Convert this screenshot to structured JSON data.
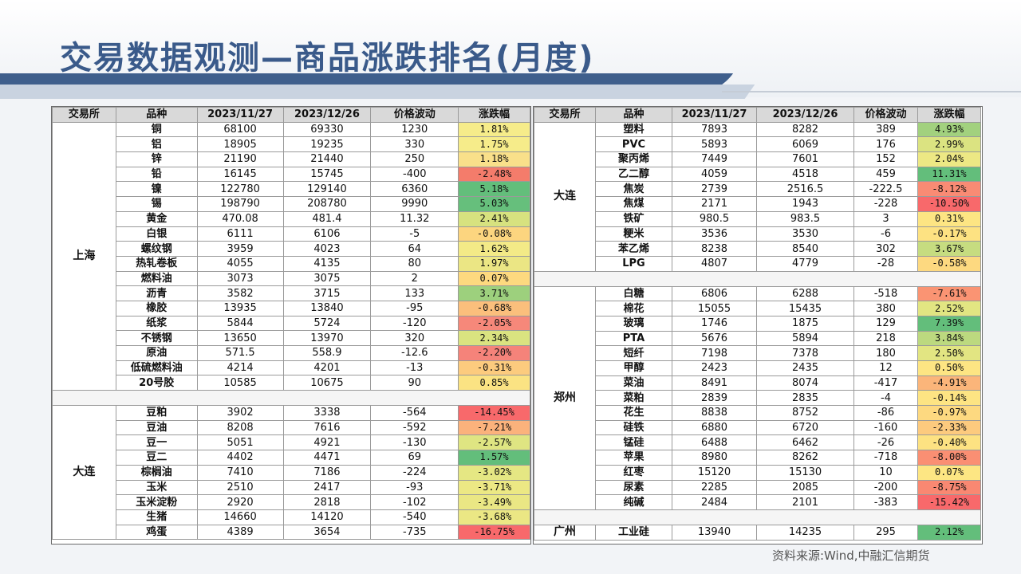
{
  "title": "交易数据观测—商品涨跌排名(月度)",
  "source": "资料来源:Wind,中融汇信期货",
  "headers": [
    "交易所",
    "品种",
    "2023/11/27",
    "2023/12/26",
    "价格波动",
    "涨跌幅"
  ],
  "left_groups": [
    {
      "exchange": "上海",
      "rows": [
        {
          "name": "铜",
          "p1": "68100",
          "p2": "69330",
          "chg": "1230",
          "pct": "1.81%",
          "color": "#f6ec8a"
        },
        {
          "name": "铝",
          "p1": "18905",
          "p2": "19235",
          "chg": "330",
          "pct": "1.75%",
          "color": "#f6ec8a"
        },
        {
          "name": "锌",
          "p1": "21190",
          "p2": "21440",
          "chg": "250",
          "pct": "1.18%",
          "color": "#f9e08a"
        },
        {
          "name": "铅",
          "p1": "16145",
          "p2": "15745",
          "chg": "-400",
          "pct": "-2.48%",
          "color": "#f47c6b"
        },
        {
          "name": "镍",
          "p1": "122780",
          "p2": "129140",
          "chg": "6360",
          "pct": "5.18%",
          "color": "#63be7b"
        },
        {
          "name": "锡",
          "p1": "198790",
          "p2": "208780",
          "chg": "9990",
          "pct": "5.03%",
          "color": "#66bf7c"
        },
        {
          "name": "黄金",
          "p1": "470.08",
          "p2": "481.4",
          "chg": "11.32",
          "pct": "2.41%",
          "color": "#d7e27f"
        },
        {
          "name": "白银",
          "p1": "6111",
          "p2": "6106",
          "chg": "-5",
          "pct": "-0.08%",
          "color": "#fcd57f"
        },
        {
          "name": "螺纹钢",
          "p1": "3959",
          "p2": "4023",
          "chg": "64",
          "pct": "1.62%",
          "color": "#f3ea87"
        },
        {
          "name": "热轧卷板",
          "p1": "4055",
          "p2": "4135",
          "chg": "80",
          "pct": "1.97%",
          "color": "#ebe684"
        },
        {
          "name": "燃料油",
          "p1": "3073",
          "p2": "3075",
          "chg": "2",
          "pct": "0.07%",
          "color": "#fdd97f"
        },
        {
          "name": "沥青",
          "p1": "3582",
          "p2": "3715",
          "chg": "133",
          "pct": "3.71%",
          "color": "#9dd07d"
        },
        {
          "name": "橡胶",
          "p1": "13935",
          "p2": "13840",
          "chg": "-95",
          "pct": "-0.68%",
          "color": "#fbbf7c"
        },
        {
          "name": "纸浆",
          "p1": "5844",
          "p2": "5724",
          "chg": "-120",
          "pct": "-2.05%",
          "color": "#f6887a"
        },
        {
          "name": "不锈钢",
          "p1": "13650",
          "p2": "13970",
          "chg": "320",
          "pct": "2.34%",
          "color": "#dae380"
        },
        {
          "name": "原油",
          "p1": "571.5",
          "p2": "558.9",
          "chg": "-12.6",
          "pct": "-2.20%",
          "color": "#f5837a"
        },
        {
          "name": "低硫燃料油",
          "p1": "4214",
          "p2": "4201",
          "chg": "-13",
          "pct": "-0.31%",
          "color": "#fccb7e"
        },
        {
          "name": "20号胶",
          "p1": "10585",
          "p2": "10675",
          "chg": "90",
          "pct": "0.85%",
          "color": "#fbe383"
        }
      ]
    },
    {
      "exchange": "大连",
      "rows": [
        {
          "name": "豆粕",
          "p1": "3902",
          "p2": "3338",
          "chg": "-564",
          "pct": "-14.45%",
          "color": "#f8696b"
        },
        {
          "name": "豆油",
          "p1": "8208",
          "p2": "7616",
          "chg": "-592",
          "pct": "-7.21%",
          "color": "#fbb27c"
        },
        {
          "name": "豆一",
          "p1": "5051",
          "p2": "4921",
          "chg": "-130",
          "pct": "-2.57%",
          "color": "#dfe582"
        },
        {
          "name": "豆二",
          "p1": "4402",
          "p2": "4471",
          "chg": "69",
          "pct": "1.57%",
          "color": "#63be7b"
        },
        {
          "name": "棕榈油",
          "p1": "7410",
          "p2": "7186",
          "chg": "-224",
          "pct": "-3.02%",
          "color": "#e5e783"
        },
        {
          "name": "玉米",
          "p1": "2510",
          "p2": "2417",
          "chg": "-93",
          "pct": "-3.71%",
          "color": "#ece884"
        },
        {
          "name": "玉米淀粉",
          "p1": "2920",
          "p2": "2818",
          "chg": "-102",
          "pct": "-3.49%",
          "color": "#eae784"
        },
        {
          "name": "生猪",
          "p1": "14660",
          "p2": "14120",
          "chg": "-540",
          "pct": "-3.68%",
          "color": "#ebe784"
        },
        {
          "name": "鸡蛋",
          "p1": "4389",
          "p2": "3654",
          "chg": "-735",
          "pct": "-16.75%",
          "color": "#f8696b"
        }
      ]
    }
  ],
  "right_groups": [
    {
      "exchange": "大连",
      "rows": [
        {
          "name": "塑料",
          "p1": "7893",
          "p2": "8282",
          "chg": "389",
          "pct": "4.93%",
          "color": "#a2d17e"
        },
        {
          "name": "PVC",
          "p1": "5893",
          "p2": "6069",
          "chg": "176",
          "pct": "2.99%",
          "color": "#dbe381"
        },
        {
          "name": "聚丙烯",
          "p1": "7449",
          "p2": "7601",
          "chg": "152",
          "pct": "2.04%",
          "color": "#ede884"
        },
        {
          "name": "乙二醇",
          "p1": "4059",
          "p2": "4518",
          "chg": "459",
          "pct": "11.31%",
          "color": "#63be7b"
        },
        {
          "name": "焦炭",
          "p1": "2739",
          "p2": "2516.5",
          "chg": "-222.5",
          "pct": "-8.12%",
          "color": "#f98b74"
        },
        {
          "name": "焦煤",
          "p1": "2171",
          "p2": "1943",
          "chg": "-228",
          "pct": "-10.50%",
          "color": "#f8696b"
        },
        {
          "name": "铁矿",
          "p1": "980.5",
          "p2": "983.5",
          "chg": "3",
          "pct": "0.31%",
          "color": "#fde583"
        },
        {
          "name": "粳米",
          "p1": "3536",
          "p2": "3530",
          "chg": "-6",
          "pct": "-0.17%",
          "color": "#fde282"
        },
        {
          "name": "苯乙烯",
          "p1": "8238",
          "p2": "8540",
          "chg": "302",
          "pct": "3.67%",
          "color": "#c6dc80"
        },
        {
          "name": "LPG",
          "p1": "4807",
          "p2": "4779",
          "chg": "-28",
          "pct": "-0.58%",
          "color": "#fdd980"
        }
      ]
    },
    {
      "exchange": "郑州",
      "rows": [
        {
          "name": "白糖",
          "p1": "6806",
          "p2": "6288",
          "chg": "-518",
          "pct": "-7.61%",
          "color": "#fa9473"
        },
        {
          "name": "棉花",
          "p1": "15055",
          "p2": "15435",
          "chg": "380",
          "pct": "2.52%",
          "color": "#e2e582"
        },
        {
          "name": "玻璃",
          "p1": "1746",
          "p2": "1875",
          "chg": "129",
          "pct": "7.39%",
          "color": "#63be7b"
        },
        {
          "name": "PTA",
          "p1": "5676",
          "p2": "5894",
          "chg": "218",
          "pct": "3.84%",
          "color": "#bcd97f"
        },
        {
          "name": "短纤",
          "p1": "7198",
          "p2": "7378",
          "chg": "180",
          "pct": "2.50%",
          "color": "#e2e582"
        },
        {
          "name": "甲醇",
          "p1": "2423",
          "p2": "2435",
          "chg": "12",
          "pct": "0.50%",
          "color": "#fde583"
        },
        {
          "name": "菜油",
          "p1": "8491",
          "p2": "8074",
          "chg": "-417",
          "pct": "-4.91%",
          "color": "#fbb57a"
        },
        {
          "name": "菜粕",
          "p1": "2839",
          "p2": "2835",
          "chg": "-4",
          "pct": "-0.14%",
          "color": "#fde483"
        },
        {
          "name": "花生",
          "p1": "8838",
          "p2": "8752",
          "chg": "-86",
          "pct": "-0.97%",
          "color": "#fdd980"
        },
        {
          "name": "硅铁",
          "p1": "6880",
          "p2": "6720",
          "chg": "-160",
          "pct": "-2.33%",
          "color": "#fcca7e"
        },
        {
          "name": "锰硅",
          "p1": "6488",
          "p2": "6462",
          "chg": "-26",
          "pct": "-0.40%",
          "color": "#fde282"
        },
        {
          "name": "苹果",
          "p1": "8980",
          "p2": "8262",
          "chg": "-718",
          "pct": "-8.00%",
          "color": "#fa8f73"
        },
        {
          "name": "红枣",
          "p1": "15120",
          "p2": "15130",
          "chg": "10",
          "pct": "0.07%",
          "color": "#fde683"
        },
        {
          "name": "尿素",
          "p1": "2285",
          "p2": "2085",
          "chg": "-200",
          "pct": "-8.75%",
          "color": "#f98872"
        },
        {
          "name": "纯碱",
          "p1": "2484",
          "p2": "2101",
          "chg": "-383",
          "pct": "-15.42%",
          "color": "#f8696b"
        }
      ]
    },
    {
      "exchange": "广州",
      "rows": [
        {
          "name": "工业硅",
          "p1": "13940",
          "p2": "14235",
          "chg": "295",
          "pct": "2.12%",
          "color": "#63be7b"
        }
      ]
    }
  ],
  "colors": {
    "title": "#3a5a8a",
    "header_bg": "#d9d9d9",
    "swoosh": "#3f5f8c"
  }
}
